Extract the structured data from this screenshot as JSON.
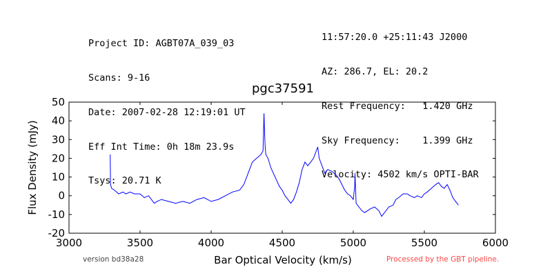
{
  "header_left": [
    "Project ID: AGBT07A_039_03",
    "Scans: 9-16",
    "Date: 2007-02-28 12:19:01 UT",
    "Eff Int Time: 0h 18m 23.9s",
    "Tsys: 20.71 K"
  ],
  "header_right": [
    "11:57:20.0 +25:11:43 J2000",
    "AZ: 286.7, EL: 20.2",
    "Rest Frequency:   1.420 GHz",
    "Sky Frequency:    1.399 GHz",
    "Velocity: 4502 km/s OPTI-BAR"
  ],
  "footer": {
    "version": "version bd38a28",
    "pipeline": "Processed by the GBT pipeline."
  },
  "colors": {
    "line": "#0000ff",
    "pipeline_text": "#ff4444",
    "version_text": "#444444"
  },
  "chart_data": {
    "type": "line",
    "title": "pgc37591",
    "xlabel": "Bar Optical Velocity (km/s)",
    "ylabel": "Flux Density (mJy)",
    "xlim": [
      3000,
      6000
    ],
    "ylim": [
      -20,
      50
    ],
    "xticks": [
      3000,
      3500,
      4000,
      4500,
      5000,
      5500,
      6000
    ],
    "yticks": [
      -20,
      -10,
      0,
      10,
      20,
      30,
      40,
      50
    ],
    "grid": false,
    "legend": "none",
    "series": [
      {
        "x": [
          3290,
          3292,
          3300,
          3320,
          3350,
          3380,
          3400,
          3430,
          3460,
          3500,
          3530,
          3560,
          3590,
          3600,
          3620,
          3650,
          3700,
          3750,
          3800,
          3850,
          3900,
          3950,
          4000,
          4050,
          4100,
          4150,
          4200,
          4230,
          4260,
          4290,
          4320,
          4350,
          4365,
          4372,
          4376,
          4380,
          4385,
          4400,
          4420,
          4450,
          4480,
          4500,
          4520,
          4540,
          4560,
          4580,
          4600,
          4620,
          4640,
          4660,
          4680,
          4700,
          4720,
          4740,
          4750,
          4760,
          4780,
          4800,
          4820,
          4850,
          4880,
          4900,
          4920,
          4940,
          4960,
          4980,
          5000,
          5010,
          5012,
          5020,
          5040,
          5060,
          5080,
          5100,
          5120,
          5150,
          5180,
          5200,
          5220,
          5250,
          5280,
          5300,
          5320,
          5350,
          5380,
          5400,
          5430,
          5450,
          5480,
          5500,
          5520,
          5550,
          5580,
          5600,
          5620,
          5640,
          5660,
          5680,
          5700,
          5720,
          5740
        ],
        "y": [
          22,
          6,
          4,
          3,
          1,
          2,
          1,
          2,
          1,
          1,
          -1,
          0,
          -3,
          -4,
          -3,
          -2,
          -3,
          -4,
          -3,
          -4,
          -2,
          -1,
          -3,
          -2,
          0,
          2,
          3,
          6,
          12,
          18,
          20,
          22,
          24,
          44,
          33,
          26,
          22,
          20,
          15,
          10,
          5,
          3,
          0,
          -2,
          -4,
          -2,
          2,
          7,
          14,
          18,
          16,
          18,
          20,
          24,
          26,
          20,
          16,
          12,
          14,
          13,
          11,
          9,
          6,
          3,
          1,
          0,
          -2,
          5,
          12,
          -4,
          -6,
          -8,
          -9,
          -8,
          -7,
          -6,
          -8,
          -11,
          -9,
          -6,
          -5,
          -2,
          -1,
          1,
          1,
          0,
          -1,
          0,
          -1,
          1,
          2,
          4,
          6,
          7,
          5,
          4,
          6,
          3,
          -1,
          -3,
          -5
        ]
      }
    ]
  }
}
